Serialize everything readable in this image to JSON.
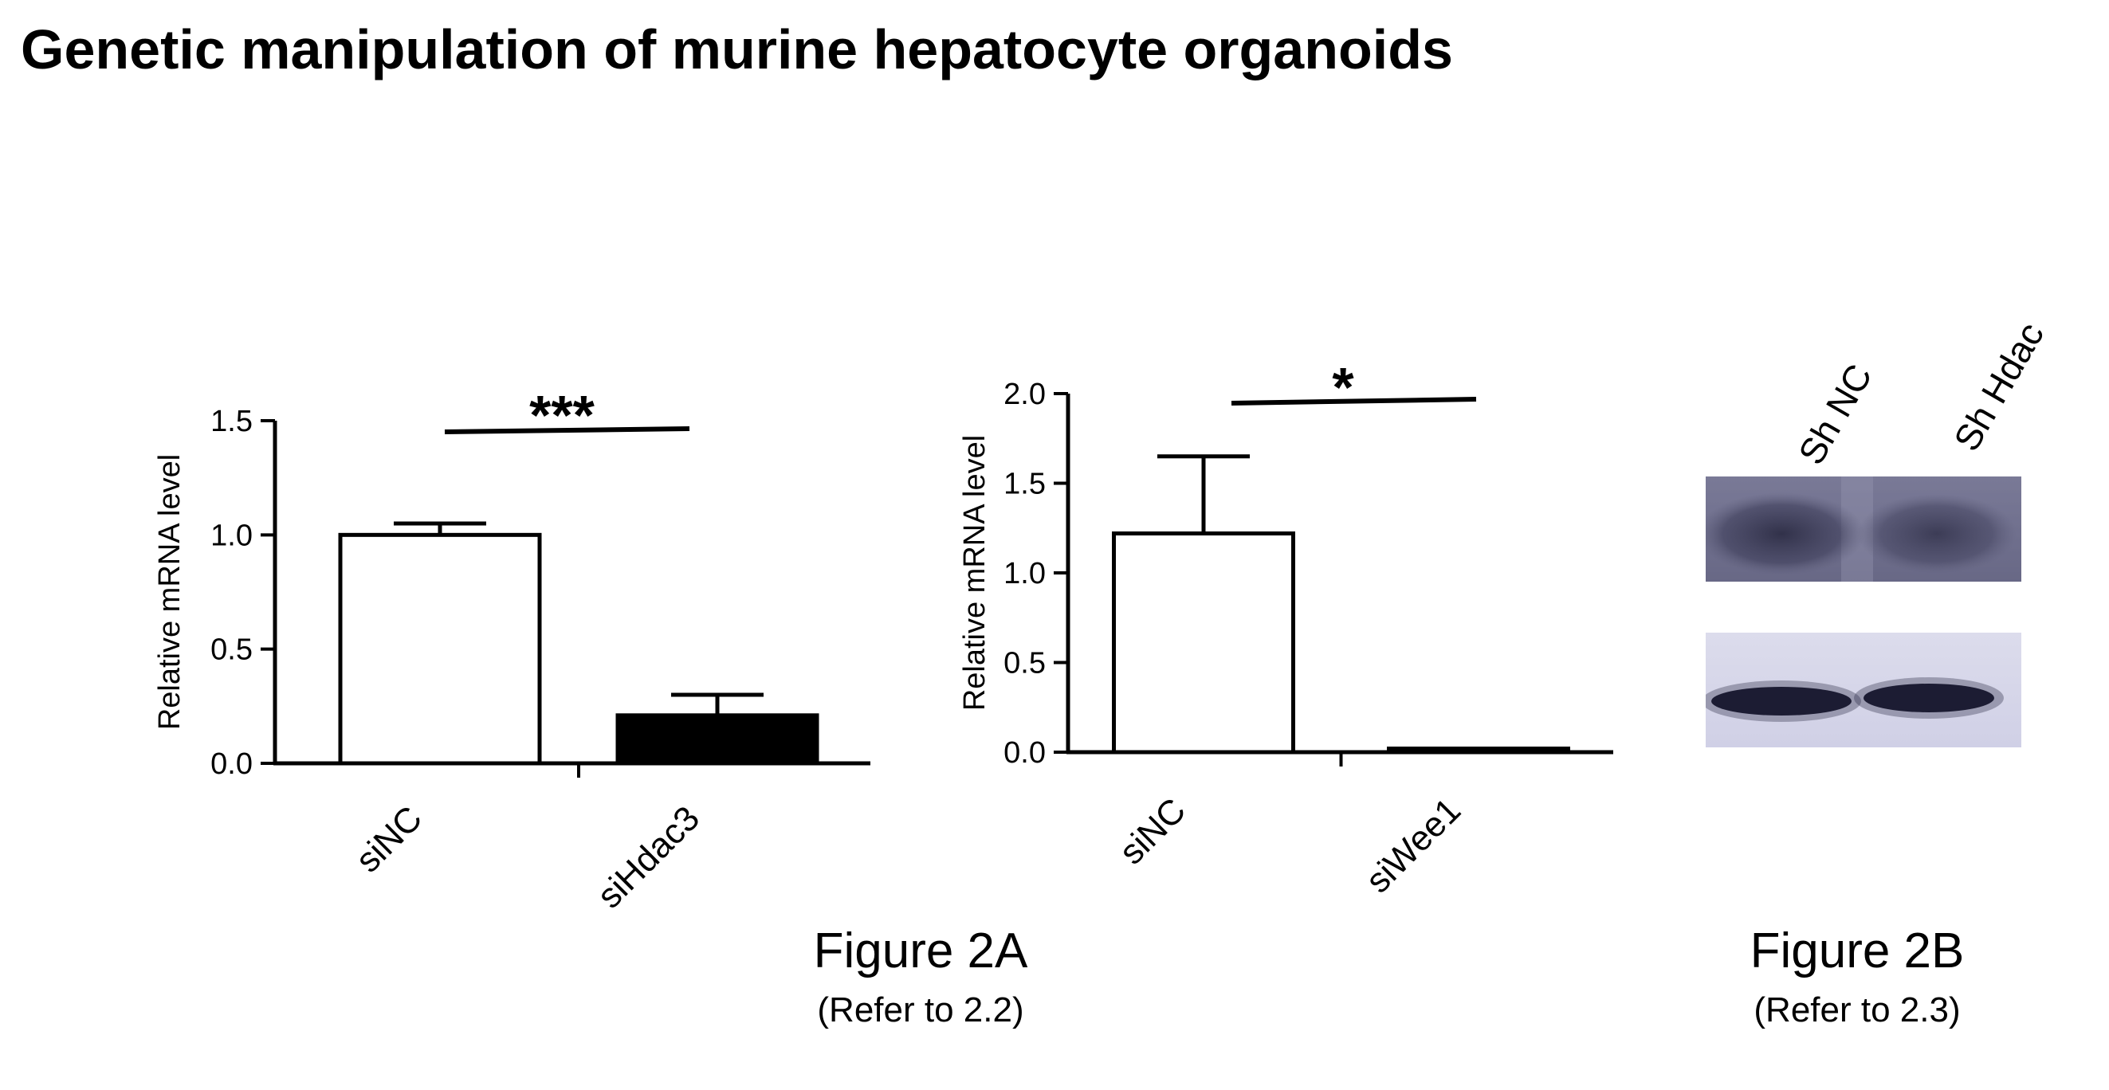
{
  "page": {
    "title": "Genetic manipulation of murine hepatocyte organoids"
  },
  "chart_data": [
    {
      "type": "bar",
      "categories": [
        "siNC",
        "siHdac3"
      ],
      "values": [
        1.0,
        0.21
      ],
      "errors": [
        0.05,
        0.09
      ],
      "bar_colors": [
        "#ffffff",
        "#000000"
      ],
      "ylabel": "Relative mRNA level",
      "ylim": [
        0,
        1.5
      ],
      "yticks": [
        0.0,
        0.5,
        1.0,
        1.5
      ],
      "ytick_labels": [
        "0.0",
        "0.5",
        "1.0",
        "1.5"
      ],
      "significance": "***"
    },
    {
      "type": "bar",
      "categories": [
        "siNC",
        "siWee1"
      ],
      "values": [
        1.22,
        0.02
      ],
      "errors": [
        0.43,
        0.0
      ],
      "bar_colors": [
        "#ffffff",
        "#ffffff"
      ],
      "ylabel": "Relative mRNA level",
      "ylim": [
        0,
        2.0
      ],
      "yticks": [
        0.0,
        0.5,
        1.0,
        1.5,
        2.0
      ],
      "ytick_labels": [
        "0.0",
        "0.5",
        "1.0",
        "1.5",
        "2.0"
      ],
      "significance": "*"
    }
  ],
  "captions": {
    "fig2a": {
      "title": "Figure 2A",
      "ref": "(Refer to 2.2)"
    },
    "fig2b": {
      "title": "Figure 2B",
      "ref": "(Refer to 2.3)"
    }
  },
  "blot": {
    "lanes": [
      "Sh NC",
      "Sh Hdac"
    ]
  }
}
